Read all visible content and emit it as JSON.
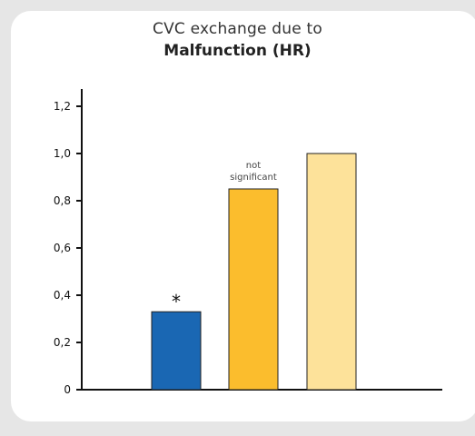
{
  "chart_data": {
    "type": "bar",
    "title": "CVC exchange due to",
    "subtitle": "Malfunction (HR)",
    "xlabel": "",
    "ylabel": "",
    "ylim": [
      0,
      1.2
    ],
    "yticks": [
      "0",
      "0,2",
      "0,4",
      "0,6",
      "0,8",
      "1,0",
      "1,2"
    ],
    "categories": [
      "",
      "",
      ""
    ],
    "values": [
      0.33,
      0.85,
      1.0
    ],
    "colors": [
      "#1a67b3",
      "#fbbd2d",
      "#fde29a"
    ],
    "annotations": [
      {
        "bar_index": 0,
        "lines": [
          "*"
        ]
      },
      {
        "bar_index": 1,
        "lines": [
          "not",
          "significant"
        ]
      }
    ],
    "grid": false,
    "legend": "none"
  }
}
